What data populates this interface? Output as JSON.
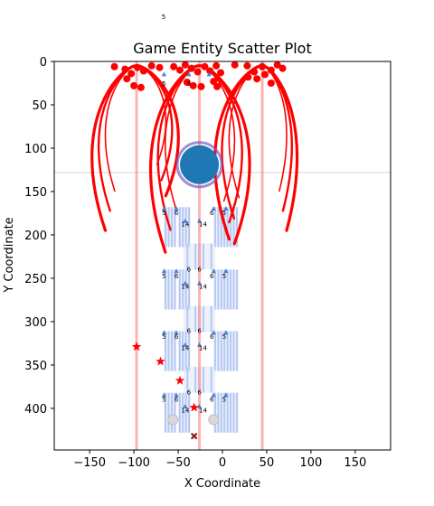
{
  "chart_data": {
    "type": "scatter",
    "title": "Game Entity Scatter Plot",
    "xlabel": "X Coordinate",
    "ylabel": "Y Coordinate",
    "xlim": [
      -190,
      190
    ],
    "ylim": [
      448,
      0
    ],
    "y_inverted": true,
    "grid": false,
    "xticks": [
      -150,
      -100,
      -50,
      0,
      50,
      100,
      150
    ],
    "yticks": [
      0,
      50,
      100,
      150,
      200,
      250,
      300,
      350,
      400
    ],
    "vertical_lines": [
      {
        "x": -97,
        "color": "#ff0000",
        "alpha": 0.3
      },
      {
        "x": -26,
        "color": "#ff0000",
        "alpha": 0.3
      },
      {
        "x": 45,
        "color": "#ff0000",
        "alpha": 0.3
      }
    ],
    "horizontal_line": {
      "y": 128,
      "color": "#888888"
    },
    "big_circle": {
      "x": -26,
      "y": 119,
      "r_data": 22,
      "color": "#1f77b4",
      "edge": "#7e5bbf"
    },
    "red_dots": [
      [
        -122,
        6
      ],
      [
        -110,
        9
      ],
      [
        -103,
        14
      ],
      [
        -96,
        7
      ],
      [
        -89,
        11
      ],
      [
        -80,
        5
      ],
      [
        -71,
        7
      ],
      [
        -100,
        28
      ],
      [
        -92,
        30
      ],
      [
        -108,
        20
      ],
      [
        -55,
        6
      ],
      [
        -48,
        10
      ],
      [
        -42,
        4
      ],
      [
        -35,
        8
      ],
      [
        -28,
        12
      ],
      [
        -20,
        6
      ],
      [
        -14,
        11
      ],
      [
        -7,
        5
      ],
      [
        -2,
        13
      ],
      [
        -40,
        24
      ],
      [
        -33,
        28
      ],
      [
        -24,
        29
      ],
      [
        -10,
        23
      ],
      [
        -6,
        29
      ],
      [
        14,
        4
      ],
      [
        28,
        5
      ],
      [
        36,
        12
      ],
      [
        45,
        6
      ],
      [
        55,
        10
      ],
      [
        62,
        4
      ],
      [
        68,
        8
      ],
      [
        29,
        18
      ],
      [
        39,
        20
      ],
      [
        48,
        15
      ],
      [
        55,
        25
      ]
    ],
    "red_arcs": [
      {
        "x0": -97,
        "y0": 5,
        "reach": 64,
        "depth": 190,
        "dir": -1
      },
      {
        "x0": -97,
        "y0": 5,
        "reach": 60,
        "depth": 150,
        "dir": 1
      },
      {
        "x0": -26,
        "y0": 5,
        "reach": 70,
        "depth": 215,
        "dir": -1
      },
      {
        "x0": -26,
        "y0": 5,
        "reach": 72,
        "depth": 205,
        "dir": 1
      },
      {
        "x0": 45,
        "y0": 5,
        "reach": 68,
        "depth": 200,
        "dir": -1
      },
      {
        "x0": 45,
        "y0": 5,
        "reach": 50,
        "depth": 190,
        "dir": 1
      }
    ],
    "red_stars": [
      [
        -97,
        329
      ],
      [
        -70,
        346
      ],
      [
        -48,
        368
      ],
      [
        -32,
        399
      ]
    ],
    "x_marker": {
      "x": -32,
      "y": 432
    },
    "gray_dots": [
      [
        -56,
        413
      ],
      [
        -10,
        413
      ]
    ],
    "blue_blocks": [
      {
        "x": -66,
        "y": 168,
        "w": 14,
        "h": 46
      },
      {
        "x": -50,
        "y": 168,
        "w": 14,
        "h": 46
      },
      {
        "x": -10,
        "y": 168,
        "w": 14,
        "h": 46
      },
      {
        "x": 4,
        "y": 168,
        "w": 14,
        "h": 46
      },
      {
        "x": -66,
        "y": 240,
        "w": 14,
        "h": 46
      },
      {
        "x": -50,
        "y": 240,
        "w": 14,
        "h": 46
      },
      {
        "x": -10,
        "y": 240,
        "w": 14,
        "h": 46
      },
      {
        "x": 4,
        "y": 240,
        "w": 14,
        "h": 46
      },
      {
        "x": -66,
        "y": 311,
        "w": 14,
        "h": 46
      },
      {
        "x": -50,
        "y": 311,
        "w": 14,
        "h": 46
      },
      {
        "x": -10,
        "y": 311,
        "w": 14,
        "h": 46
      },
      {
        "x": 4,
        "y": 311,
        "w": 14,
        "h": 46
      },
      {
        "x": -66,
        "y": 382,
        "w": 14,
        "h": 46
      },
      {
        "x": -50,
        "y": 382,
        "w": 14,
        "h": 46
      },
      {
        "x": -10,
        "y": 382,
        "w": 14,
        "h": 46
      },
      {
        "x": 4,
        "y": 382,
        "w": 14,
        "h": 46
      },
      {
        "x": -44,
        "y": 210,
        "w": 36,
        "h": 30
      },
      {
        "x": -44,
        "y": 282,
        "w": 36,
        "h": 30
      },
      {
        "x": -44,
        "y": 352,
        "w": 36,
        "h": 30
      }
    ],
    "blue_triangles": [
      [
        -66,
        170
      ],
      [
        -52,
        170
      ],
      [
        -42,
        184
      ],
      [
        -26,
        184
      ],
      [
        -10,
        170
      ],
      [
        4,
        170
      ],
      [
        -66,
        242
      ],
      [
        -52,
        242
      ],
      [
        -42,
        256
      ],
      [
        -26,
        256
      ],
      [
        -10,
        242
      ],
      [
        4,
        242
      ],
      [
        -66,
        313
      ],
      [
        -52,
        313
      ],
      [
        -42,
        327
      ],
      [
        -26,
        327
      ],
      [
        -10,
        313
      ],
      [
        4,
        313
      ],
      [
        -66,
        385
      ],
      [
        -52,
        385
      ],
      [
        -42,
        398
      ],
      [
        -26,
        398
      ],
      [
        -10,
        385
      ],
      [
        4,
        385
      ],
      [
        -66,
        15
      ],
      [
        -38,
        15
      ],
      [
        -15,
        15
      ]
    ],
    "number_labels": [
      {
        "x": -66,
        "y": 177,
        "t": "5"
      },
      {
        "x": -52,
        "y": 177,
        "t": "6"
      },
      {
        "x": -42,
        "y": 190,
        "t": "14"
      },
      {
        "x": -22,
        "y": 190,
        "t": "14"
      },
      {
        "x": -12,
        "y": 177,
        "t": "6"
      },
      {
        "x": 2,
        "y": 177,
        "t": "5"
      },
      {
        "x": -38,
        "y": 242,
        "t": "6"
      },
      {
        "x": -26,
        "y": 242,
        "t": "6"
      },
      {
        "x": -66,
        "y": 250,
        "t": "5"
      },
      {
        "x": -52,
        "y": 250,
        "t": "6"
      },
      {
        "x": -42,
        "y": 262,
        "t": "14"
      },
      {
        "x": -22,
        "y": 262,
        "t": "14"
      },
      {
        "x": -12,
        "y": 250,
        "t": "6"
      },
      {
        "x": 2,
        "y": 250,
        "t": "5"
      },
      {
        "x": -38,
        "y": 313,
        "t": "6"
      },
      {
        "x": -26,
        "y": 313,
        "t": "6"
      },
      {
        "x": -66,
        "y": 320,
        "t": "5"
      },
      {
        "x": -52,
        "y": 320,
        "t": "6"
      },
      {
        "x": -42,
        "y": 333,
        "t": "14"
      },
      {
        "x": -22,
        "y": 333,
        "t": "14"
      },
      {
        "x": -12,
        "y": 320,
        "t": "6"
      },
      {
        "x": 2,
        "y": 320,
        "t": "5"
      },
      {
        "x": -38,
        "y": 384,
        "t": "6"
      },
      {
        "x": -26,
        "y": 384,
        "t": "6"
      },
      {
        "x": -66,
        "y": 392,
        "t": "5"
      },
      {
        "x": -52,
        "y": 392,
        "t": "6"
      },
      {
        "x": -42,
        "y": 405,
        "t": "14"
      },
      {
        "x": -22,
        "y": 405,
        "t": "14"
      },
      {
        "x": -12,
        "y": 392,
        "t": "6"
      },
      {
        "x": 2,
        "y": 392,
        "t": "5"
      },
      {
        "x": -66,
        "y": 28,
        "t": "5"
      },
      {
        "x": -38,
        "y": 28,
        "t": "5"
      }
    ],
    "outside_label": {
      "x": -68,
      "y": -50,
      "t": "5"
    }
  }
}
